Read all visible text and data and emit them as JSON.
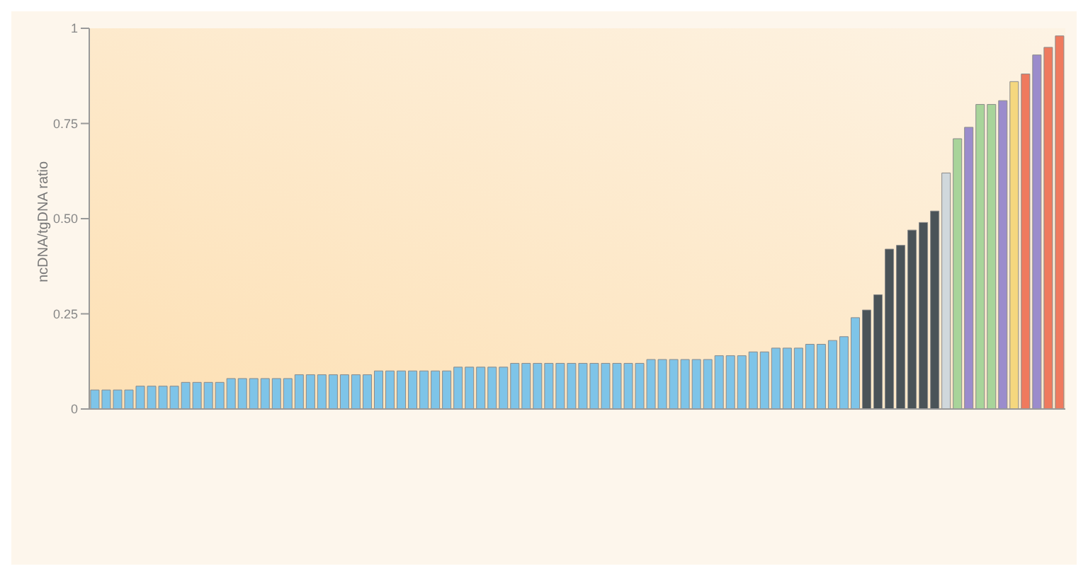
{
  "chart_data": {
    "type": "bar",
    "ylabel": "ncDNA/tgDNA ratio",
    "categories": [
      null,
      null,
      null,
      null,
      null,
      null,
      null,
      null,
      null,
      null,
      null,
      null,
      null,
      null,
      null,
      null,
      null,
      null,
      null,
      null,
      null,
      null,
      null,
      null,
      null,
      null,
      null,
      null,
      null,
      null,
      null,
      null,
      null,
      null,
      null,
      null,
      null,
      null,
      null,
      null,
      null,
      null,
      null,
      null,
      null,
      null,
      null,
      null,
      null,
      null,
      null,
      null,
      null,
      null,
      null,
      null,
      null,
      null,
      null,
      null,
      null,
      null,
      null,
      null,
      null,
      null,
      null,
      null,
      null,
      null,
      null,
      null,
      null,
      null,
      null,
      null,
      null,
      null,
      null,
      null,
      null,
      null,
      null,
      null,
      null,
      null
    ],
    "values": [
      0.05,
      0.05,
      0.05,
      0.05,
      0.06,
      0.06,
      0.06,
      0.06,
      0.07,
      0.07,
      0.07,
      0.07,
      0.08,
      0.08,
      0.08,
      0.08,
      0.08,
      0.08,
      0.09,
      0.09,
      0.09,
      0.09,
      0.09,
      0.09,
      0.09,
      0.1,
      0.1,
      0.1,
      0.1,
      0.1,
      0.1,
      0.1,
      0.11,
      0.11,
      0.11,
      0.11,
      0.11,
      0.12,
      0.12,
      0.12,
      0.12,
      0.12,
      0.12,
      0.12,
      0.12,
      0.12,
      0.12,
      0.12,
      0.12,
      0.13,
      0.13,
      0.13,
      0.13,
      0.13,
      0.13,
      0.14,
      0.14,
      0.14,
      0.15,
      0.15,
      0.16,
      0.16,
      0.16,
      0.17,
      0.17,
      0.18,
      0.19,
      0.24,
      0.26,
      0.3,
      0.42,
      0.43,
      0.47,
      0.49,
      0.52,
      0.62,
      0.71,
      0.74,
      0.8,
      0.8,
      0.81,
      0.86,
      0.88,
      0.93,
      0.95,
      0.98
    ],
    "colors": [
      "#7ec4e8",
      "#7ec4e8",
      "#7ec4e8",
      "#7ec4e8",
      "#7ec4e8",
      "#7ec4e8",
      "#7ec4e8",
      "#7ec4e8",
      "#7ec4e8",
      "#7ec4e8",
      "#7ec4e8",
      "#7ec4e8",
      "#7ec4e8",
      "#7ec4e8",
      "#7ec4e8",
      "#7ec4e8",
      "#7ec4e8",
      "#7ec4e8",
      "#7ec4e8",
      "#7ec4e8",
      "#7ec4e8",
      "#7ec4e8",
      "#7ec4e8",
      "#7ec4e8",
      "#7ec4e8",
      "#7ec4e8",
      "#7ec4e8",
      "#7ec4e8",
      "#7ec4e8",
      "#7ec4e8",
      "#7ec4e8",
      "#7ec4e8",
      "#7ec4e8",
      "#7ec4e8",
      "#7ec4e8",
      "#7ec4e8",
      "#7ec4e8",
      "#7ec4e8",
      "#7ec4e8",
      "#7ec4e8",
      "#7ec4e8",
      "#7ec4e8",
      "#7ec4e8",
      "#7ec4e8",
      "#7ec4e8",
      "#7ec4e8",
      "#7ec4e8",
      "#7ec4e8",
      "#7ec4e8",
      "#7ec4e8",
      "#7ec4e8",
      "#7ec4e8",
      "#7ec4e8",
      "#7ec4e8",
      "#7ec4e8",
      "#7ec4e8",
      "#7ec4e8",
      "#7ec4e8",
      "#7ec4e8",
      "#7ec4e8",
      "#7ec4e8",
      "#7ec4e8",
      "#7ec4e8",
      "#7ec4e8",
      "#7ec4e8",
      "#7ec4e8",
      "#7ec4e8",
      "#7ec4e8",
      "#4a5358",
      "#4a5358",
      "#4a5358",
      "#4a5358",
      "#4a5358",
      "#4a5358",
      "#4a5358",
      "#d0d8dc",
      "#a8d49a",
      "#9b8ccc",
      "#a8d49a",
      "#a8d49a",
      "#9b8ccc",
      "#f5d77e",
      "#ef7a5e",
      "#9b8ccc",
      "#ef7a5e",
      "#ef7a5e"
    ],
    "ylim": [
      0,
      1
    ],
    "yticks": [
      0,
      0.25,
      {
        "value": 0.5,
        "label": "0.50"
      },
      0.75,
      1
    ]
  }
}
